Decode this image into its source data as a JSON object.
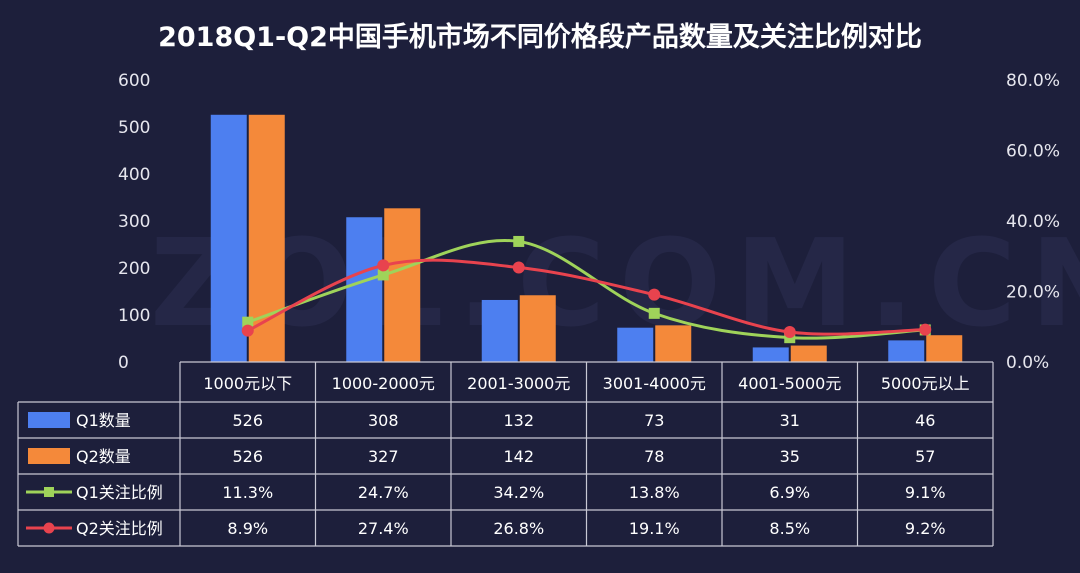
{
  "chart_data": {
    "type": "bar",
    "title": "2018Q1-Q2中国手机市场不同价格段产品数量及关注比例对比",
    "categories": [
      "1000元以下",
      "1000-2000元",
      "2001-3000元",
      "3001-4000元",
      "4001-5000元",
      "5000元以上"
    ],
    "left_axis": {
      "ylim": [
        0,
        600
      ],
      "ticks": [
        "600",
        "500",
        "400",
        "300",
        "200",
        "100",
        "0"
      ]
    },
    "right_axis": {
      "ylim": [
        0,
        80
      ],
      "ticks": [
        "80.0%",
        "60.0%",
        "40.0%",
        "20.0%",
        "0.0%"
      ]
    },
    "grid": false,
    "legend": "table",
    "series": [
      {
        "name": "Q1数量",
        "kind": "bar",
        "axis": "left",
        "color": "#4d7ff0",
        "values": [
          526,
          308,
          132,
          73,
          31,
          46
        ],
        "labels": [
          "526",
          "308",
          "132",
          "73",
          "31",
          "46"
        ]
      },
      {
        "name": "Q2数量",
        "kind": "bar",
        "axis": "left",
        "color": "#f4893a",
        "values": [
          526,
          327,
          142,
          78,
          35,
          57
        ],
        "labels": [
          "526",
          "327",
          "142",
          "78",
          "35",
          "57"
        ]
      },
      {
        "name": "Q1关注比例",
        "kind": "line",
        "axis": "right",
        "color": "#9fd35a",
        "values": [
          11.3,
          24.7,
          34.2,
          13.8,
          6.9,
          9.1
        ],
        "labels": [
          "11.3%",
          "24.7%",
          "34.2%",
          "13.8%",
          "6.9%",
          "9.1%"
        ]
      },
      {
        "name": "Q2关注比例",
        "kind": "line",
        "axis": "right",
        "color": "#e8434e",
        "values": [
          8.9,
          27.4,
          26.8,
          19.1,
          8.5,
          9.2
        ],
        "labels": [
          "8.9%",
          "27.4%",
          "26.8%",
          "19.1%",
          "8.5%",
          "9.2%"
        ]
      }
    ],
    "watermark": "ZOL.COM.CN"
  }
}
